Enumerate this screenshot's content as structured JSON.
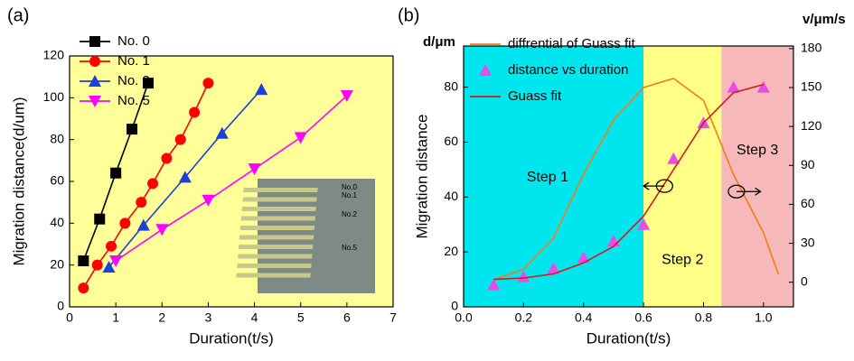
{
  "chart_data": [
    {
      "type": "line",
      "panel_label": "(a)",
      "xlabel": "Duration(t/s)",
      "ylabel": "Migration distance(d/um)",
      "xlim": [
        0,
        7
      ],
      "xticks": [
        0,
        1,
        2,
        3,
        4,
        5,
        6,
        7
      ],
      "ylim": [
        0,
        120
      ],
      "yticks": [
        0,
        20,
        40,
        60,
        80,
        100,
        120
      ],
      "background": "#ffff99",
      "legend": "upper left",
      "series": [
        {
          "name": "No. 0",
          "color": "#000000",
          "marker": "square",
          "x": [
            0.3,
            0.65,
            1.0,
            1.35,
            1.7
          ],
          "values": [
            22,
            42,
            64,
            85,
            107
          ]
        },
        {
          "name": "No. 1",
          "color": "#ff0000",
          "marker": "circle",
          "x": [
            0.3,
            0.6,
            0.9,
            1.2,
            1.55,
            1.8,
            2.1,
            2.4,
            2.7,
            3.0
          ],
          "values": [
            9,
            20,
            29,
            40,
            50,
            59,
            71,
            80,
            93,
            107
          ]
        },
        {
          "name": "No. 2",
          "color": "#1f3fd8",
          "marker": "triangle-up",
          "x": [
            0.85,
            1.6,
            2.5,
            3.3,
            4.15
          ],
          "values": [
            19,
            39,
            62,
            83,
            104
          ]
        },
        {
          "name": "No. 5",
          "color": "#ff00ff",
          "marker": "triangle-down",
          "x": [
            1.0,
            2.0,
            3.0,
            4.0,
            5.0,
            6.0
          ],
          "values": [
            22,
            37,
            51,
            66,
            81,
            101
          ]
        }
      ],
      "inset_labels": [
        "No.0",
        "No.1",
        "No.2",
        "No.5"
      ]
    },
    {
      "type": "line",
      "panel_label": "(b)",
      "xlabel": "Duration(t/s)",
      "ylabel": "Migration distance",
      "yunit": "d/μm",
      "y2unit": "v/μm/s",
      "xlim": [
        0,
        1.1
      ],
      "xticks": [
        {
          "value": 0,
          "label": "0.0"
        },
        {
          "value": 0.2,
          "label": "0.2"
        },
        {
          "value": 0.4,
          "label": "0.4"
        },
        {
          "value": 0.6,
          "label": "0.6"
        },
        {
          "value": 0.8,
          "label": "0.8"
        },
        {
          "value": 1,
          "label": "1.0"
        }
      ],
      "ylim": [
        0,
        95
      ],
      "yticks": [
        0,
        20,
        40,
        60,
        80
      ],
      "y2lim": [
        -19,
        182
      ],
      "y2ticks": [
        0,
        30,
        60,
        90,
        120,
        150,
        180
      ],
      "legend": "upper left",
      "regions": [
        {
          "label": "Step 1",
          "x": [
            0,
            0.6
          ],
          "color": "#00e6ee"
        },
        {
          "label": "Step 2",
          "x": [
            0.6,
            0.86
          ],
          "color": "#ffff88"
        },
        {
          "label": "Step 3",
          "x": [
            0.86,
            1.1
          ],
          "color": "#f6b8b8"
        }
      ],
      "series": [
        {
          "name": "diffrential of Guass fit",
          "color": "#f07d1a",
          "axis": "y2",
          "marker": "none",
          "x": [
            0.1,
            0.2,
            0.3,
            0.4,
            0.5,
            0.6,
            0.7,
            0.8,
            0.9,
            1.0,
            1.05
          ],
          "values": [
            2,
            10,
            34,
            83,
            125,
            150,
            157,
            140,
            83,
            38,
            6
          ]
        },
        {
          "name": "distance vs duration",
          "color": "#e64de6",
          "marker": "triangle-up",
          "line": false,
          "x": [
            0.1,
            0.2,
            0.3,
            0.4,
            0.5,
            0.6,
            0.7,
            0.8,
            0.9,
            1.0
          ],
          "values": [
            8,
            11,
            14,
            18,
            24,
            30,
            54,
            67,
            80,
            80
          ]
        },
        {
          "name": "Guass fit",
          "color": "#cc2020",
          "marker": "none",
          "x": [
            0.1,
            0.2,
            0.3,
            0.4,
            0.5,
            0.6,
            0.7,
            0.8,
            0.9,
            1.0
          ],
          "values": [
            10,
            10.5,
            12,
            16,
            22,
            33,
            50,
            67,
            78,
            81
          ]
        }
      ]
    }
  ]
}
